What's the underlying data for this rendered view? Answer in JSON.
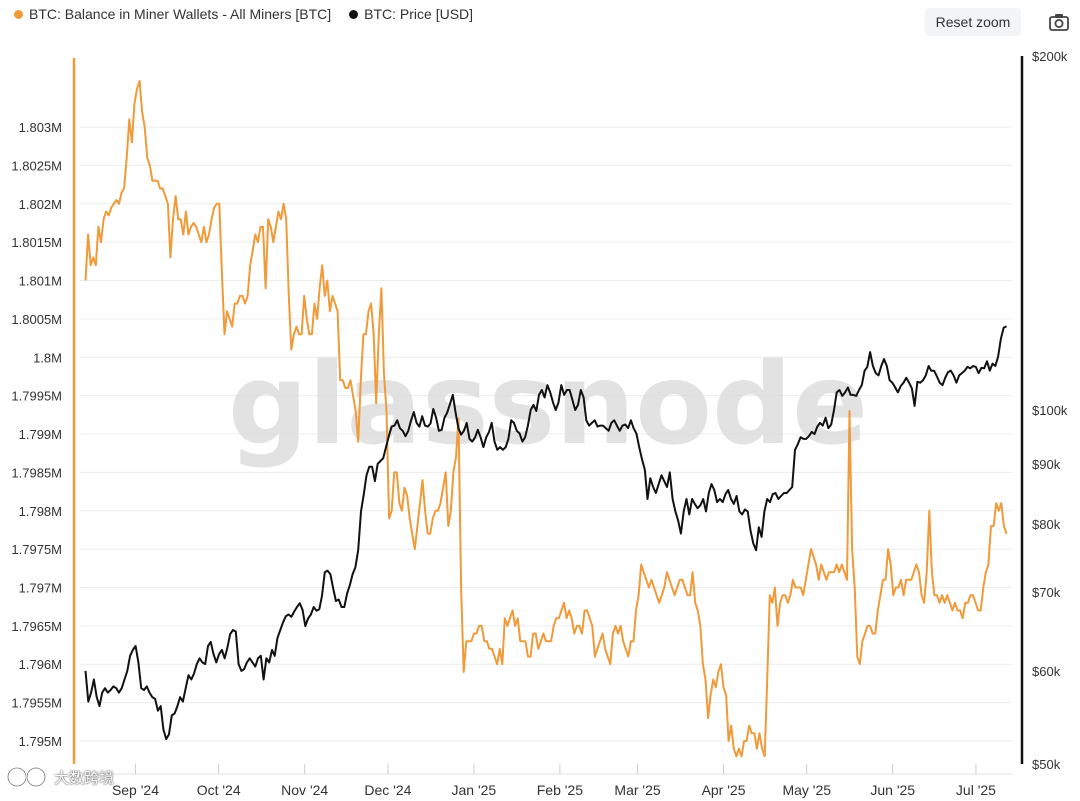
{
  "legend": {
    "series1": {
      "label": "BTC: Balance in Miner Wallets - All Miners [BTC]",
      "color": "#f09a3a"
    },
    "series2": {
      "label": "BTC: Price [USD]",
      "color": "#111111"
    }
  },
  "toolbar": {
    "reset_zoom": "Reset zoom",
    "camera_icon": "camera-icon"
  },
  "watermark": {
    "text": "glassnode",
    "corner_text": "大数跨境"
  },
  "chart_data": {
    "type": "line",
    "x_tick_labels": [
      "Sep '24",
      "Oct '24",
      "Nov '24",
      "Dec '24",
      "Jan '25",
      "Feb '25",
      "Mar '25",
      "Apr '25",
      "May '25",
      "Jun '25",
      "Jul '25"
    ],
    "x_tick_index": [
      20,
      50,
      81,
      111,
      142,
      173,
      201,
      232,
      262,
      293,
      323
    ],
    "xlim_days": [
      0,
      336
    ],
    "left_axis": {
      "labels": [
        "1.795M",
        "1.7955M",
        "1.796M",
        "1.7965M",
        "1.797M",
        "1.7975M",
        "1.798M",
        "1.7985M",
        "1.799M",
        "1.7995M",
        "1.8M",
        "1.8005M",
        "1.801M",
        "1.8015M",
        "1.802M",
        "1.8025M",
        "1.803M"
      ],
      "values": [
        1795000,
        1795500,
        1796000,
        1796500,
        1797000,
        1797500,
        1798000,
        1798500,
        1799000,
        1799500,
        1800000,
        1800500,
        1801000,
        1801500,
        1802000,
        1802500,
        1803000
      ],
      "ylim": [
        1794700,
        1803900
      ]
    },
    "right_axis": {
      "labels": [
        "$50k",
        "$60k",
        "$70k",
        "$80k",
        "$90k",
        "$100k",
        "$200k"
      ],
      "values": [
        50000,
        60000,
        70000,
        80000,
        90000,
        100000,
        200000
      ],
      "scale": "log"
    },
    "series": [
      {
        "name": "BTC: Balance in Miner Wallets - All Miners [BTC]",
        "color": "#f09a3a",
        "axis": "left",
        "values": [
          1801000,
          1801600,
          1801200,
          1801300,
          1801200,
          1801700,
          1801500,
          1801800,
          1801900,
          1801850,
          1801950,
          1802000,
          1802050,
          1802000,
          1802150,
          1802200,
          1802600,
          1803100,
          1802800,
          1803300,
          1803500,
          1803600,
          1803200,
          1803000,
          1802600,
          1802500,
          1802300,
          1802300,
          1802300,
          1802200,
          1802200,
          1802100,
          1802000,
          1801300,
          1801800,
          1802100,
          1801800,
          1801800,
          1801600,
          1801900,
          1801600,
          1801700,
          1801750,
          1801700,
          1801600,
          1801500,
          1801700,
          1801500,
          1801600,
          1801800,
          1801950,
          1802000,
          1802000,
          1801100,
          1800300,
          1800600,
          1800500,
          1800400,
          1800700,
          1800700,
          1800800,
          1800800,
          1800700,
          1800800,
          1801200,
          1801400,
          1801600,
          1801500,
          1801700,
          1801700,
          1800900,
          1801800,
          1801700,
          1801500,
          1801700,
          1801900,
          1801800,
          1802000,
          1801800,
          1800800,
          1800100,
          1800300,
          1800400,
          1800300,
          1800300,
          1800800,
          1800500,
          1800300,
          1800300,
          1800700,
          1800500,
          1800900,
          1801200,
          1800800,
          1801000,
          1800600,
          1800800,
          1800700,
          1800600,
          1799700,
          1799700,
          1799600,
          1799600,
          1799700,
          1799500,
          1799300,
          1798900,
          1799700,
          1800300,
          1800300,
          1800600,
          1800700,
          1800300,
          1799400,
          1800300,
          1800900,
          1799800,
          1799300,
          1797900,
          1798000,
          1798500,
          1798500,
          1798100,
          1798000,
          1798300,
          1798200,
          1797900,
          1797700,
          1797500,
          1797800,
          1798100,
          1798400,
          1798000,
          1797700,
          1797700,
          1797900,
          1798000,
          1798000,
          1798100,
          1798300,
          1798500,
          1797800,
          1798000,
          1798500,
          1798700,
          1799200,
          1797000,
          1795900,
          1796300,
          1796300,
          1796300,
          1796400,
          1796400,
          1796500,
          1796500,
          1796300,
          1796300,
          1796200,
          1796200,
          1796100,
          1796000,
          1796200,
          1796000,
          1796600,
          1796500,
          1796600,
          1796700,
          1796500,
          1796600,
          1796300,
          1796300,
          1796300,
          1796100,
          1796100,
          1796400,
          1796400,
          1796200,
          1796300,
          1796400,
          1796300,
          1796300,
          1796300,
          1796500,
          1796600,
          1796600,
          1796700,
          1796800,
          1796600,
          1796700,
          1796600,
          1796400,
          1796500,
          1796500,
          1796400,
          1796700,
          1796700,
          1796600,
          1796500,
          1796100,
          1796200,
          1796300,
          1796400,
          1796200,
          1796100,
          1796000,
          1796400,
          1796500,
          1796400,
          1796500,
          1796300,
          1796200,
          1796100,
          1796300,
          1796300,
          1796700,
          1796900,
          1797300,
          1797200,
          1797100,
          1797000,
          1797100,
          1797000,
          1796900,
          1796800,
          1796900,
          1797000,
          1797200,
          1797100,
          1797000,
          1796900,
          1797000,
          1797100,
          1797100,
          1797000,
          1796900,
          1796900,
          1797200,
          1796800,
          1796700,
          1796500,
          1796000,
          1795800,
          1795300,
          1795600,
          1795800,
          1795700,
          1795900,
          1796000,
          1795700,
          1795600,
          1795000,
          1795200,
          1794900,
          1794800,
          1794900,
          1794800,
          1795000,
          1795000,
          1795200,
          1795100,
          1795100,
          1794900,
          1795100,
          1794900,
          1794800,
          1795800,
          1796900,
          1796800,
          1797000,
          1796500,
          1796800,
          1796900,
          1796900,
          1796800,
          1796900,
          1797100,
          1797000,
          1797000,
          1797000,
          1796900,
          1797100,
          1797300,
          1797500,
          1797400,
          1797300,
          1797100,
          1797300,
          1797200,
          1797100,
          1797200,
          1797200,
          1797200,
          1797300,
          1797200,
          1797300,
          1797200,
          1797100,
          1799300,
          1797500,
          1797000,
          1796100,
          1796000,
          1796300,
          1796400,
          1796500,
          1796500,
          1796400,
          1796400,
          1796700,
          1796900,
          1797100,
          1797100,
          1797500,
          1797300,
          1796900,
          1797000,
          1797000,
          1797100,
          1796900,
          1797100,
          1797100,
          1797100,
          1797200,
          1797300,
          1797200,
          1796900,
          1796800,
          1797200,
          1798000,
          1797200,
          1796900,
          1796900,
          1796800,
          1796900,
          1796800,
          1796900,
          1796800,
          1796700,
          1796800,
          1796700,
          1796700,
          1796600,
          1796800,
          1796800,
          1796900,
          1796900,
          1796800,
          1796700,
          1796700,
          1797000,
          1797200,
          1797300,
          1797800,
          1797800,
          1798100,
          1798000,
          1798100,
          1797800,
          1797700
        ]
      },
      {
        "name": "BTC: Price [USD]",
        "color": "#111111",
        "axis": "right",
        "values": [
          60000,
          56500,
          57500,
          59000,
          57000,
          56000,
          57500,
          58000,
          57500,
          57800,
          58200,
          58000,
          57500,
          58000,
          59000,
          60000,
          61800,
          62500,
          63000,
          61000,
          58000,
          57800,
          58200,
          57500,
          57000,
          56800,
          55500,
          56000,
          53500,
          52500,
          53000,
          55000,
          55200,
          56000,
          57000,
          56500,
          58000,
          59500,
          59000,
          59700,
          60800,
          61500,
          61000,
          60800,
          63000,
          63500,
          62000,
          61000,
          62000,
          62500,
          61500,
          62800,
          64500,
          65000,
          64800,
          60800,
          60000,
          60200,
          61000,
          61500,
          61000,
          60500,
          61500,
          61800,
          59000,
          61500,
          61000,
          62500,
          61800,
          64000,
          65000,
          66000,
          66800,
          67000,
          66700,
          67400,
          68000,
          68500,
          67600,
          65500,
          66500,
          67000,
          68000,
          67500,
          67700,
          69500,
          72800,
          73000,
          72500,
          70500,
          68800,
          69000,
          68000,
          68000,
          69800,
          71000,
          72500,
          73500,
          76000,
          82000,
          84800,
          88000,
          89500,
          89500,
          87000,
          90000,
          90500,
          91000,
          93000,
          95000,
          96800,
          97000,
          98000,
          96500,
          96000,
          95000,
          96000,
          98000,
          99600,
          97500,
          96800,
          98800,
          97000,
          96800,
          97400,
          100200,
          98500,
          96000,
          96200,
          98500,
          99500,
          101200,
          103000,
          99500,
          96500,
          95300,
          96000,
          97500,
          94500,
          94000,
          94800,
          96200,
          94800,
          93000,
          94800,
          95800,
          97500,
          94000,
          92500,
          93000,
          92500,
          93000,
          94500,
          98000,
          97500,
          96000,
          95500,
          94000,
          94800,
          97000,
          100000,
          101000,
          99800,
          103000,
          104000,
          102500,
          105000,
          103500,
          101500,
          100000,
          101500,
          105000,
          103000,
          104000,
          104000,
          102000,
          100000,
          101000,
          104000,
          102500,
          98000,
          97000,
          97500,
          98000,
          96800,
          97000,
          97000,
          96500,
          96000,
          97500,
          98000,
          97000,
          96000,
          97000,
          97200,
          96500,
          98000,
          96500,
          95500,
          93000,
          90800,
          89000,
          84000,
          87500,
          86000,
          85000,
          86500,
          88000,
          87000,
          86000,
          88500,
          84000,
          82000,
          80500,
          78500,
          82000,
          84000,
          81500,
          84000,
          83200,
          82500,
          83000,
          84000,
          82000,
          85000,
          86500,
          85500,
          83500,
          84000,
          83500,
          84800,
          85500,
          84000,
          83200,
          84500,
          82000,
          81500,
          82300,
          82000,
          79000,
          77000,
          76000,
          79500,
          78000,
          82000,
          84000,
          83500,
          84800,
          85000,
          84000,
          84500,
          85000,
          85000,
          85500,
          86000,
          92500,
          93500,
          94800,
          94500,
          94500,
          95000,
          95800,
          95400,
          96800,
          97500,
          97000,
          98500,
          96500,
          97200,
          100000,
          103500,
          104000,
          102800,
          103500,
          104500,
          103000,
          103000,
          102800,
          104000,
          105000,
          108000,
          108800,
          112000,
          109000,
          107500,
          107000,
          109000,
          110500,
          109000,
          106000,
          105500,
          104500,
          103500,
          104800,
          105500,
          106500,
          105500,
          104300,
          100800,
          105700,
          105500,
          106000,
          107000,
          109000,
          108000,
          108000,
          106800,
          105500,
          105000,
          106500,
          107700,
          108000,
          107000,
          105500,
          107000,
          107500,
          108000,
          108800,
          108500,
          109000,
          108800,
          107500,
          108600,
          108500,
          110000,
          108000,
          109500,
          109000,
          111000,
          115000,
          117500,
          117800
        ]
      }
    ]
  }
}
